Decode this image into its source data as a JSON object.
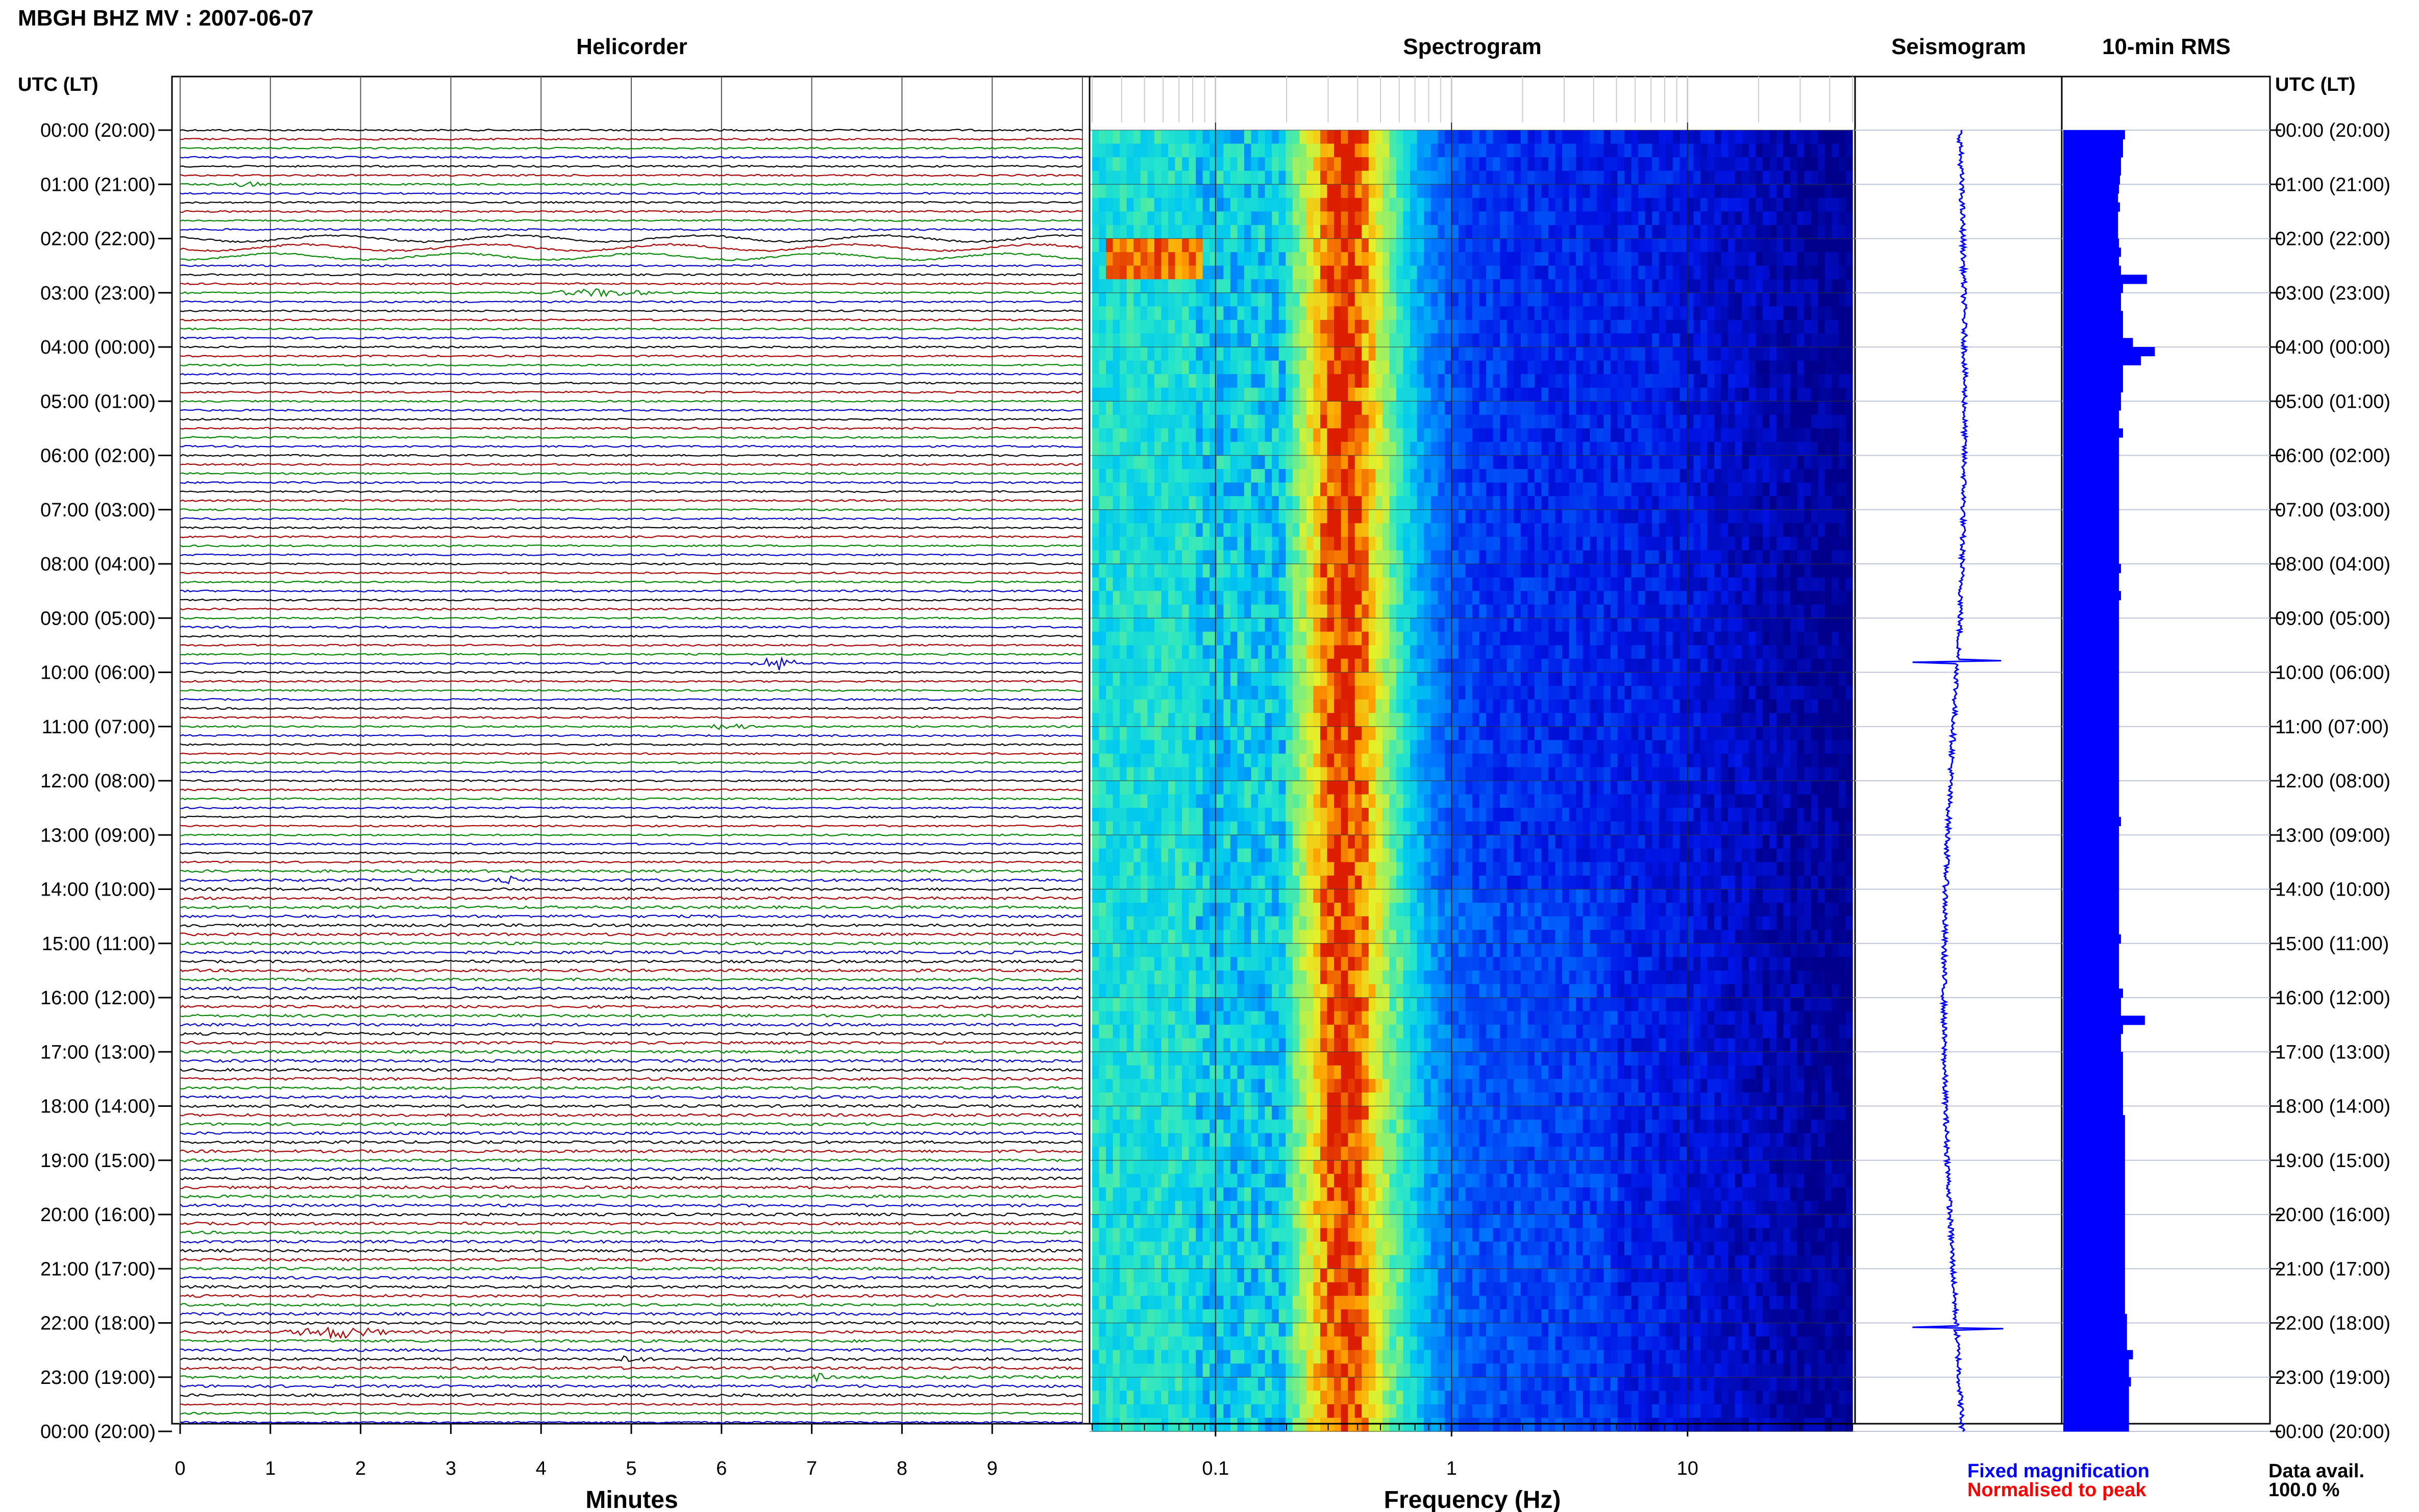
{
  "header": {
    "station_title": "MBGH BHZ MV : 2007-06-07",
    "left_axis_label": "UTC (LT)",
    "right_axis_label": "UTC (LT)"
  },
  "panels": {
    "helicorder_title": "Helicorder",
    "spectrogram_title": "Spectrogram",
    "seismogram_title": "Seismogram",
    "rms_title": "10-min RMS"
  },
  "footer": {
    "fixed_magnification": "Fixed magnification",
    "normalised_to_peak": "Normalised to peak",
    "data_avail_label": "Data avail.",
    "data_avail_value": "100.0 %"
  },
  "colors": {
    "trace_black": "#000000",
    "trace_red": "#aa0000",
    "trace_green": "#008800",
    "trace_blue": "#0000cc",
    "legend_blue": "#0000ff",
    "legend_red": "#ff0000",
    "rms_fill": "#0000ff"
  },
  "chart_data": [
    {
      "type": "line",
      "title": "Helicorder",
      "xlabel": "Minutes",
      "x_ticks": [
        "0",
        "1",
        "2",
        "3",
        "4",
        "5",
        "6",
        "7",
        "8",
        "9"
      ],
      "xlim": [
        0,
        10
      ],
      "y_ticks": [
        "00:00 (20:00)",
        "01:00 (21:00)",
        "02:00 (22:00)",
        "03:00 (23:00)",
        "04:00 (00:00)",
        "05:00 (01:00)",
        "06:00 (02:00)",
        "07:00 (03:00)",
        "08:00 (04:00)",
        "09:00 (05:00)",
        "10:00 (06:00)",
        "11:00 (07:00)",
        "12:00 (08:00)",
        "13:00 (09:00)",
        "14:00 (10:00)",
        "15:00 (11:00)",
        "16:00 (12:00)",
        "17:00 (13:00)",
        "18:00 (14:00)",
        "19:00 (15:00)",
        "20:00 (16:00)",
        "21:00 (17:00)",
        "22:00 (18:00)",
        "23:00 (19:00)",
        "00:00 (20:00)"
      ],
      "rows": 144,
      "row_minutes": 10,
      "trace_color_cycle": [
        "black",
        "red",
        "green",
        "blue"
      ],
      "events": [
        {
          "hour": 9.8,
          "start_min": 6.3,
          "end_min": 6.9,
          "amplitude": 7
        },
        {
          "hour": 22.1,
          "start_min": 1.1,
          "end_min": 2.4,
          "amplitude": 5
        },
        {
          "hour": 1.0,
          "start_min": 0.5,
          "end_min": 1.0,
          "amplitude": 2
        },
        {
          "hour": 3.0,
          "start_min": 3.9,
          "end_min": 5.4,
          "amplitude": 3
        },
        {
          "hour": 10.95,
          "start_min": 5.8,
          "end_min": 6.4,
          "amplitude": 3
        },
        {
          "hour": 13.85,
          "start_min": 3.5,
          "end_min": 3.8,
          "amplitude": 3
        },
        {
          "hour": 22.65,
          "start_min": 4.8,
          "end_min": 5.2,
          "amplitude": 3
        },
        {
          "hour": 22.95,
          "start_min": 6.9,
          "end_min": 7.2,
          "amplitude": 3
        }
      ]
    },
    {
      "type": "heatmap",
      "title": "Spectrogram",
      "xlabel": "Frequency (Hz)",
      "x_scale": "log",
      "xlim": [
        0.03,
        50
      ],
      "x_ticks": [
        "0.1",
        "1",
        "10"
      ],
      "peak_band_hz": 0.35,
      "noted_high_energy": {
        "hours": [
          1.8,
          2.6
        ],
        "freq_hz": [
          0.035,
          0.09
        ]
      }
    },
    {
      "type": "line",
      "title": "Seismogram",
      "note": "24-hour trace, drifting offset with spikes near 10:00 and 22:00",
      "spikes_hours": [
        9.8,
        22.1
      ]
    },
    {
      "type": "bar",
      "title": "10-min RMS",
      "orientation": "horizontal",
      "bin_minutes": 10,
      "bins": 144,
      "relative_values": [
        0.62,
        0.6,
        0.6,
        0.58,
        0.58,
        0.57,
        0.56,
        0.55,
        0.57,
        0.55,
        0.55,
        0.55,
        0.56,
        0.58,
        0.56,
        0.58,
        0.84,
        0.6,
        0.58,
        0.58,
        0.6,
        0.6,
        0.6,
        0.7,
        0.92,
        0.78,
        0.6,
        0.6,
        0.6,
        0.58,
        0.58,
        0.56,
        0.56,
        0.6,
        0.56,
        0.56,
        0.56,
        0.56,
        0.56,
        0.56,
        0.56,
        0.56,
        0.56,
        0.56,
        0.56,
        0.56,
        0.56,
        0.56,
        0.58,
        0.56,
        0.56,
        0.58,
        0.56,
        0.56,
        0.56,
        0.56,
        0.56,
        0.56,
        0.56,
        0.56,
        0.56,
        0.56,
        0.56,
        0.56,
        0.56,
        0.56,
        0.56,
        0.56,
        0.56,
        0.56,
        0.56,
        0.56,
        0.56,
        0.56,
        0.56,
        0.56,
        0.58,
        0.56,
        0.56,
        0.56,
        0.56,
        0.56,
        0.56,
        0.56,
        0.56,
        0.56,
        0.56,
        0.56,
        0.56,
        0.58,
        0.56,
        0.56,
        0.56,
        0.56,
        0.56,
        0.6,
        0.58,
        0.58,
        0.82,
        0.6,
        0.58,
        0.58,
        0.6,
        0.6,
        0.6,
        0.6,
        0.6,
        0.6,
        0.6,
        0.62,
        0.62,
        0.62,
        0.62,
        0.62,
        0.62,
        0.62,
        0.62,
        0.62,
        0.62,
        0.62,
        0.62,
        0.62,
        0.62,
        0.62,
        0.62,
        0.62,
        0.62,
        0.62,
        0.62,
        0.62,
        0.62,
        0.64,
        0.64,
        0.64,
        0.64,
        0.7,
        0.66,
        0.66,
        0.68,
        0.66,
        0.66,
        0.66,
        0.66,
        0.66
      ]
    }
  ]
}
